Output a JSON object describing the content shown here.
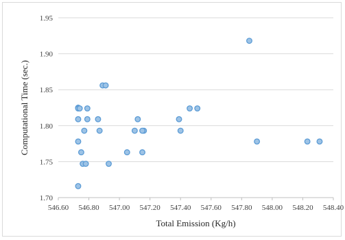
{
  "chart_data": {
    "type": "scatter",
    "title": "",
    "xlabel": "Total Emission (Kg/h)",
    "ylabel": "Computational Time (sec.)",
    "xlim": [
      546.6,
      548.4
    ],
    "ylim": [
      1.7,
      1.95
    ],
    "x_ticks": [
      546.6,
      546.8,
      547.0,
      547.2,
      547.4,
      547.6,
      547.8,
      548.0,
      548.2,
      548.4
    ],
    "x_tick_labels": [
      "546.60",
      "546.80",
      "547.00",
      "547.20",
      "547.40",
      "547.60",
      "547.80",
      "548.00",
      "548.20",
      "548.40"
    ],
    "y_ticks": [
      1.7,
      1.75,
      1.8,
      1.85,
      1.9,
      1.95
    ],
    "y_tick_labels": [
      "1.70",
      "1.75",
      "1.80",
      "1.85",
      "1.90",
      "1.95"
    ],
    "grid": "horizontal",
    "legend": "none",
    "marker_color": "#9dc3e6",
    "marker_edge_color": "#5b9bd5",
    "series": [
      {
        "x": [
          546.73,
          546.73,
          546.74,
          546.73,
          546.79,
          546.73,
          546.77,
          546.79,
          546.75,
          546.76,
          546.78,
          546.73,
          546.86,
          546.87,
          546.89,
          546.91,
          546.93,
          547.05,
          547.1,
          547.12,
          547.15,
          547.16,
          547.15,
          547.39,
          547.4,
          547.46,
          547.51,
          547.85,
          547.9,
          548.23,
          548.31
        ],
        "y": [
          1.825,
          1.824,
          1.824,
          1.809,
          1.824,
          1.778,
          1.793,
          1.809,
          1.763,
          1.747,
          1.747,
          1.716,
          1.809,
          1.793,
          1.856,
          1.856,
          1.747,
          1.763,
          1.793,
          1.809,
          1.763,
          1.793,
          1.793,
          1.809,
          1.793,
          1.824,
          1.824,
          1.918,
          1.778,
          1.778,
          1.778
        ]
      }
    ]
  }
}
